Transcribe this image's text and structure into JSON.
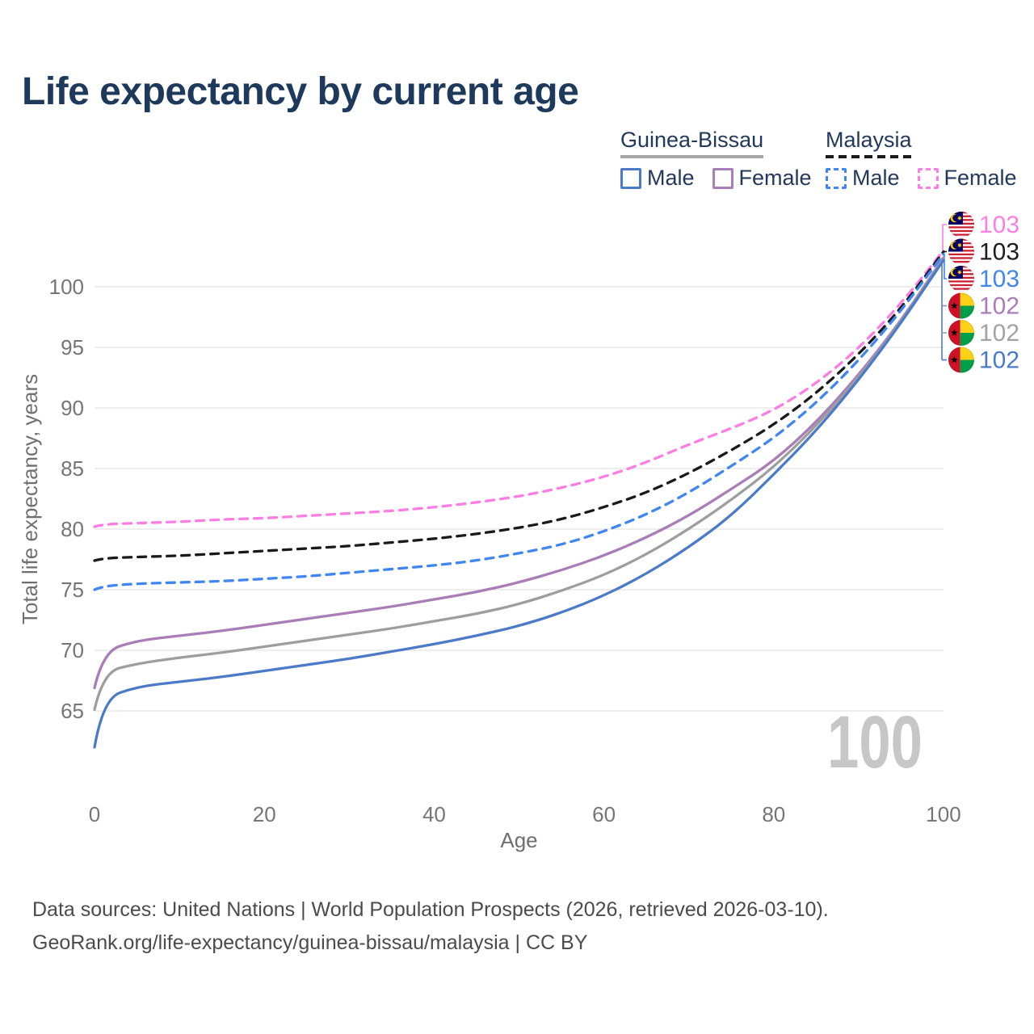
{
  "ui": {
    "title": "Life expectancy by current age",
    "watermark": "100",
    "legend": {
      "groups": [
        {
          "name": "Guinea-Bissau",
          "rule_style": "solid",
          "rule_color": "#a8a8a8",
          "items": [
            {
              "label": "Male",
              "series": "gw_male"
            },
            {
              "label": "Female",
              "series": "gw_female"
            }
          ]
        },
        {
          "name": "Malaysia",
          "rule_style": "dashed",
          "rule_color": "#1a1a1a",
          "items": [
            {
              "label": "Male",
              "series": "my_male"
            },
            {
              "label": "Female",
              "series": "my_female"
            }
          ]
        }
      ]
    },
    "footer": {
      "line1": "Data sources: United Nations | World Population Prospects (2026, retrieved 2026-03-10).",
      "line2": "GeoRank.org/life-expectancy/guinea-bissau/malaysia | CC BY"
    }
  },
  "chart_data": {
    "type": "line",
    "title": "Life expectancy by current age",
    "xlabel": "Age",
    "ylabel": "Total life expectancy, years",
    "x_ticks": [
      0,
      20,
      40,
      60,
      80,
      100
    ],
    "y_ticks": [
      65,
      70,
      75,
      80,
      85,
      90,
      95,
      100
    ],
    "xlim": [
      0,
      100
    ],
    "ylim": [
      62,
      103.5
    ],
    "grid": "horizontal",
    "grid_color": "#e4e4e4",
    "x": [
      0,
      1,
      5,
      10,
      15,
      20,
      25,
      30,
      35,
      40,
      45,
      50,
      55,
      60,
      65,
      70,
      75,
      80,
      85,
      90,
      95,
      100
    ],
    "series": [
      {
        "id": "my_female",
        "name": "Malaysia Female",
        "country": "Malaysia",
        "sex": "Female",
        "color": "#fc7de3",
        "dash": true,
        "values": [
          80.2,
          80.4,
          80.5,
          80.6,
          80.8,
          80.9,
          81.1,
          81.3,
          81.5,
          81.8,
          82.2,
          82.7,
          83.4,
          84.3,
          85.5,
          87.0,
          88.3,
          89.8,
          92.0,
          94.9,
          98.6,
          103.0
        ]
      },
      {
        "id": "my_both",
        "name": "Malaysia Both sexes",
        "country": "Malaysia",
        "sex": "Both",
        "color": "#1a1a1a",
        "dash": true,
        "values": [
          77.4,
          77.6,
          77.7,
          77.8,
          78.0,
          78.2,
          78.4,
          78.6,
          78.9,
          79.2,
          79.6,
          80.1,
          80.8,
          81.8,
          83.0,
          84.6,
          86.5,
          88.6,
          91.2,
          94.4,
          98.2,
          102.9
        ]
      },
      {
        "id": "my_male",
        "name": "Malaysia Male",
        "country": "Malaysia",
        "sex": "Male",
        "color": "#3f86f2",
        "dash": true,
        "values": [
          75.0,
          75.3,
          75.5,
          75.6,
          75.7,
          75.9,
          76.1,
          76.4,
          76.7,
          77.0,
          77.4,
          78.0,
          78.7,
          79.8,
          81.2,
          83.0,
          85.2,
          87.5,
          90.4,
          93.9,
          98.0,
          102.7
        ]
      },
      {
        "id": "gw_female",
        "name": "Guinea-Bissau Female",
        "country": "Guinea-Bissau",
        "sex": "Female",
        "color": "#a87db8",
        "dash": false,
        "values": [
          66.9,
          69.9,
          70.8,
          71.2,
          71.6,
          72.1,
          72.6,
          73.1,
          73.6,
          74.2,
          74.8,
          75.6,
          76.6,
          77.8,
          79.3,
          81.1,
          83.3,
          85.6,
          88.8,
          92.7,
          97.2,
          102.4
        ]
      },
      {
        "id": "gw_both",
        "name": "Guinea-Bissau Both sexes",
        "country": "Guinea-Bissau",
        "sex": "Both",
        "color": "#9e9e9e",
        "dash": false,
        "values": [
          65.1,
          68.2,
          68.9,
          69.4,
          69.8,
          70.3,
          70.8,
          71.3,
          71.8,
          72.4,
          73.0,
          73.8,
          74.9,
          76.2,
          77.9,
          80.0,
          82.4,
          85.1,
          88.5,
          92.5,
          97.1,
          102.3
        ]
      },
      {
        "id": "gw_male",
        "name": "Guinea-Bissau Male",
        "country": "Guinea-Bissau",
        "sex": "Male",
        "color": "#4b7bc8",
        "dash": false,
        "values": [
          62.0,
          66.0,
          67.0,
          67.4,
          67.8,
          68.3,
          68.8,
          69.3,
          69.9,
          70.5,
          71.2,
          72.0,
          73.1,
          74.5,
          76.3,
          78.5,
          81.1,
          84.5,
          88.1,
          92.3,
          97.0,
          102.2
        ]
      }
    ],
    "end_labels": [
      {
        "series": "my_female",
        "flag": "malaysia",
        "value": "103",
        "color": "#fc7de3"
      },
      {
        "series": "my_both",
        "flag": "malaysia",
        "value": "103",
        "color": "#1c1c1c"
      },
      {
        "series": "my_male",
        "flag": "malaysia",
        "value": "103",
        "color": "#3f86f2"
      },
      {
        "series": "gw_female",
        "flag": "guinea-bissau",
        "value": "102",
        "color": "#a87db8"
      },
      {
        "series": "gw_both",
        "flag": "guinea-bissau",
        "value": "102",
        "color": "#a3a3a3"
      },
      {
        "series": "gw_male",
        "flag": "guinea-bissau",
        "value": "102",
        "color": "#4b7bc8"
      }
    ]
  }
}
